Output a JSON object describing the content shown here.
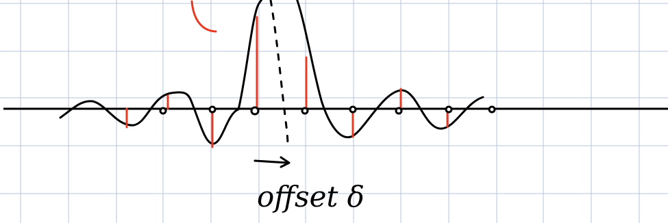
{
  "annotation": "offset δ"
}
